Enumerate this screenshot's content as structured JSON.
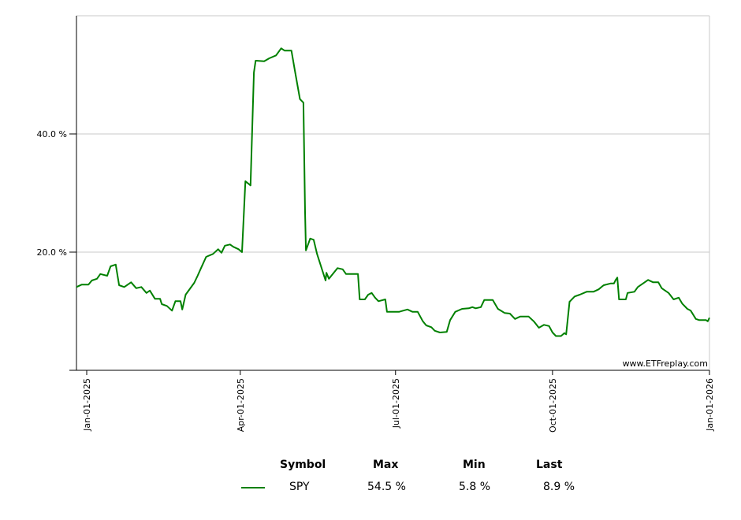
{
  "chart_data": {
    "type": "line",
    "title": "",
    "xlabel": "",
    "ylabel": "",
    "x_unit": "days since Jan-01-2025",
    "xlim": [
      -6,
      365
    ],
    "ylim": [
      0,
      60
    ],
    "grid": "horizontal",
    "y_ticks": [
      {
        "value": 20,
        "label": "20.0 %"
      },
      {
        "value": 40,
        "label": "40.0 %"
      }
    ],
    "x_ticks": [
      {
        "value": 0,
        "label": "Jan-01-2025"
      },
      {
        "value": 90,
        "label": "Apr-01-2025"
      },
      {
        "value": 181,
        "label": "Jul-01-2025"
      },
      {
        "value": 273,
        "label": "Oct-01-2025"
      },
      {
        "value": 365,
        "label": "Jan-01-2026"
      }
    ],
    "watermark": "www.ETFreplay.com",
    "series": [
      {
        "name": "SPY",
        "color": "#008000",
        "points": [
          [
            -6,
            14.1
          ],
          [
            -3,
            14.5
          ],
          [
            1,
            14.5
          ],
          [
            3,
            15.2
          ],
          [
            6,
            15.5
          ],
          [
            8,
            16.3
          ],
          [
            12,
            16.0
          ],
          [
            14,
            17.6
          ],
          [
            17,
            17.9
          ],
          [
            19,
            14.4
          ],
          [
            22,
            14.1
          ],
          [
            26,
            14.9
          ],
          [
            29,
            13.9
          ],
          [
            32,
            14.1
          ],
          [
            35,
            13.1
          ],
          [
            37,
            13.5
          ],
          [
            40,
            12.1
          ],
          [
            43,
            12.1
          ],
          [
            44,
            11.2
          ],
          [
            47,
            10.9
          ],
          [
            50,
            10.1
          ],
          [
            52,
            11.7
          ],
          [
            55,
            11.7
          ],
          [
            56,
            10.3
          ],
          [
            58,
            12.8
          ],
          [
            63,
            14.8
          ],
          [
            65,
            16.0
          ],
          [
            67,
            17.3
          ],
          [
            70,
            19.2
          ],
          [
            74,
            19.7
          ],
          [
            77,
            20.5
          ],
          [
            79,
            19.9
          ],
          [
            81,
            21.1
          ],
          [
            84,
            21.3
          ],
          [
            86,
            20.9
          ],
          [
            89,
            20.5
          ],
          [
            91,
            20.0
          ],
          [
            93,
            32.0
          ],
          [
            96,
            31.3
          ],
          [
            98,
            50.4
          ],
          [
            99,
            52.4
          ],
          [
            104,
            52.3
          ],
          [
            107,
            52.8
          ],
          [
            111,
            53.3
          ],
          [
            114,
            54.5
          ],
          [
            116,
            54.1
          ],
          [
            120,
            54.1
          ],
          [
            122,
            50.7
          ],
          [
            125,
            45.9
          ],
          [
            127,
            45.3
          ],
          [
            128,
            26.7
          ],
          [
            128.5,
            20.3
          ],
          [
            131,
            22.3
          ],
          [
            133,
            22.1
          ],
          [
            135,
            19.7
          ],
          [
            140,
            15.2
          ],
          [
            140.5,
            16.5
          ],
          [
            142,
            15.5
          ],
          [
            147,
            17.3
          ],
          [
            150,
            17.1
          ],
          [
            152,
            16.3
          ],
          [
            154,
            16.3
          ],
          [
            159,
            16.3
          ],
          [
            160,
            12.0
          ],
          [
            163,
            12.0
          ],
          [
            165,
            12.8
          ],
          [
            167,
            13.1
          ],
          [
            169,
            12.3
          ],
          [
            171,
            11.7
          ],
          [
            175,
            12.0
          ],
          [
            176,
            9.9
          ],
          [
            180,
            9.9
          ],
          [
            183,
            9.9
          ],
          [
            188,
            10.3
          ],
          [
            191,
            9.9
          ],
          [
            194,
            9.9
          ],
          [
            197,
            8.3
          ],
          [
            199,
            7.6
          ],
          [
            202,
            7.3
          ],
          [
            204,
            6.7
          ],
          [
            207,
            6.4
          ],
          [
            211,
            6.5
          ],
          [
            213,
            8.5
          ],
          [
            216,
            9.9
          ],
          [
            220,
            10.4
          ],
          [
            224,
            10.5
          ],
          [
            226,
            10.7
          ],
          [
            228,
            10.5
          ],
          [
            231,
            10.7
          ],
          [
            233,
            11.9
          ],
          [
            238,
            11.9
          ],
          [
            241,
            10.4
          ],
          [
            245,
            9.7
          ],
          [
            248,
            9.6
          ],
          [
            251,
            8.7
          ],
          [
            254,
            9.1
          ],
          [
            259,
            9.1
          ],
          [
            262,
            8.3
          ],
          [
            265,
            7.2
          ],
          [
            268,
            7.7
          ],
          [
            271,
            7.5
          ],
          [
            273,
            6.4
          ],
          [
            275,
            5.8
          ],
          [
            278,
            5.8
          ],
          [
            280,
            6.3
          ],
          [
            281,
            6.1
          ],
          [
            283,
            11.6
          ],
          [
            286,
            12.5
          ],
          [
            289,
            12.8
          ],
          [
            293,
            13.3
          ],
          [
            297,
            13.3
          ],
          [
            300,
            13.7
          ],
          [
            303,
            14.4
          ],
          [
            307,
            14.7
          ],
          [
            309,
            14.7
          ],
          [
            310,
            15.3
          ],
          [
            311,
            15.7
          ],
          [
            312,
            12.0
          ],
          [
            316,
            12.0
          ],
          [
            317,
            13.1
          ],
          [
            321,
            13.3
          ],
          [
            323,
            14.1
          ],
          [
            327,
            14.9
          ],
          [
            329,
            15.3
          ],
          [
            332,
            14.9
          ],
          [
            335,
            14.9
          ],
          [
            337,
            13.9
          ],
          [
            341,
            13.1
          ],
          [
            344,
            12.0
          ],
          [
            347,
            12.3
          ],
          [
            349,
            11.3
          ],
          [
            352,
            10.4
          ],
          [
            354,
            10.1
          ],
          [
            357,
            8.7
          ],
          [
            359,
            8.5
          ],
          [
            363,
            8.5
          ],
          [
            364,
            8.3
          ],
          [
            365,
            8.9
          ]
        ]
      }
    ]
  },
  "legend": {
    "headers": {
      "symbol": "Symbol",
      "max": "Max",
      "min": "Min",
      "last": "Last"
    },
    "rows": [
      {
        "symbol": "SPY",
        "max": "54.5 %",
        "min": "5.8 %",
        "last": "8.9 %",
        "color": "#008000"
      }
    ]
  }
}
